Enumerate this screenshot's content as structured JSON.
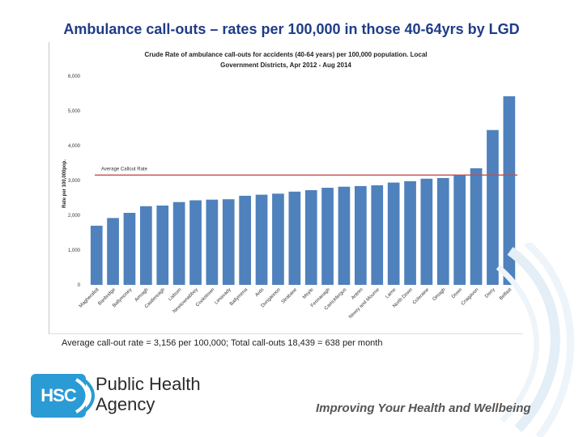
{
  "slide": {
    "title": "Ambulance call-outs – rates per 100,000 in those 40-64yrs by LGD",
    "summary": "Average call-out rate = 3,156 per 100,000; Total call-outs 18,439 = 638 per month",
    "tagline": "Improving Your Health and Wellbeing"
  },
  "logo": {
    "badge_text": "HSC",
    "name_line1": "Public Health",
    "name_line2": "Agency",
    "badge_color": "#2a9bd4"
  },
  "chart_data": {
    "type": "bar",
    "title_line1": "Crude Rate of ambulance call-outs for accidents (40-64 years) per 100,000 population. Local",
    "title_line2": "Government Districts, Apr 2012 - Aug 2014",
    "ylabel": "Rate per 100,000pop.",
    "xlabel": "",
    "ylim": [
      0,
      6000
    ],
    "yticks": [
      0,
      1000,
      2000,
      3000,
      4000,
      5000,
      6000
    ],
    "ytick_labels": [
      "0",
      "1,000",
      "2,000",
      "3,000",
      "4,000",
      "5,000",
      "6,000"
    ],
    "grid": false,
    "bar_color": "#4f81bd",
    "reference_line": {
      "label": "Average Callout Rate",
      "value": 3156,
      "color": "#c0504d"
    },
    "categories": [
      "Magherafelt",
      "Banbridge",
      "Ballymoney",
      "Armagh",
      "Castlereagh",
      "Lisburn",
      "Newtownabbey",
      "Cookstown",
      "Limavady",
      "Ballymena",
      "Ards",
      "Dungannon",
      "Strabane",
      "Moyle",
      "Fermanagh",
      "Carrickfergus",
      "Antrim",
      "Newry and Mourne",
      "Larne",
      "North Down",
      "Coleraine",
      "Omagh",
      "Down",
      "Craigavon",
      "Derry",
      "Belfast"
    ],
    "values": [
      1700,
      1920,
      2070,
      2260,
      2280,
      2380,
      2430,
      2450,
      2460,
      2560,
      2590,
      2620,
      2680,
      2720,
      2790,
      2820,
      2840,
      2860,
      2940,
      2980,
      3050,
      3070,
      3150,
      3350,
      4450,
      5420
    ]
  }
}
